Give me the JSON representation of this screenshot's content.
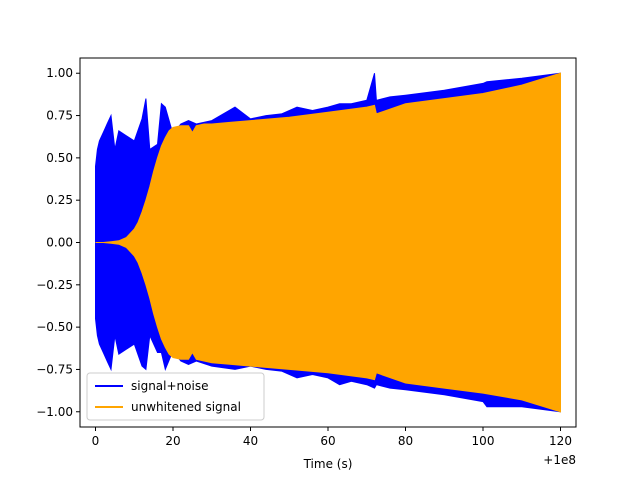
{
  "chart_data": {
    "type": "line",
    "title": "",
    "xlabel": "Time (s)",
    "ylabel": "",
    "x_offset_label": "+1e8",
    "xlim": [
      -4,
      124
    ],
    "ylim": [
      -1.09,
      1.09
    ],
    "x_ticks": [
      0,
      20,
      40,
      60,
      80,
      100,
      120
    ],
    "x_tick_labels": [
      "0",
      "20",
      "40",
      "60",
      "80",
      "100",
      "120"
    ],
    "y_ticks": [
      -1.0,
      -0.75,
      -0.5,
      -0.25,
      0.0,
      0.25,
      0.5,
      0.75,
      1.0
    ],
    "y_tick_labels": [
      "−1.00",
      "−0.75",
      "−0.50",
      "−0.25",
      "0.00",
      "0.25",
      "0.50",
      "0.75",
      "1.00"
    ],
    "grid": false,
    "legend_position": "lower-left",
    "series": [
      {
        "name": "signal+noise",
        "color": "#0000ff",
        "x": [
          0,
          0.5,
          1,
          2,
          3,
          4,
          5,
          6,
          8,
          10,
          12,
          13,
          14,
          16,
          17,
          18,
          20,
          22,
          24,
          26,
          30,
          36,
          40,
          44,
          48,
          52,
          56,
          60,
          63,
          66,
          70,
          72,
          72.5,
          76,
          80,
          90,
          100,
          101,
          110,
          120
        ],
        "upper": [
          0.45,
          0.55,
          0.6,
          0.65,
          0.7,
          0.75,
          0.55,
          0.66,
          0.63,
          0.6,
          0.73,
          0.85,
          0.55,
          0.58,
          0.82,
          0.8,
          0.64,
          0.7,
          0.72,
          0.7,
          0.72,
          0.8,
          0.73,
          0.75,
          0.76,
          0.8,
          0.78,
          0.8,
          0.82,
          0.82,
          0.84,
          1.0,
          0.84,
          0.86,
          0.87,
          0.9,
          0.94,
          0.95,
          0.97,
          1.0
        ],
        "lower": [
          -0.45,
          -0.55,
          -0.6,
          -0.65,
          -0.7,
          -0.75,
          -0.55,
          -0.66,
          -0.63,
          -0.6,
          -0.73,
          -0.75,
          -0.55,
          -0.65,
          -0.65,
          -0.75,
          -0.64,
          -0.7,
          -0.72,
          -0.7,
          -0.73,
          -0.75,
          -0.73,
          -0.75,
          -0.76,
          -0.8,
          -0.78,
          -0.8,
          -0.84,
          -0.82,
          -0.84,
          -0.86,
          -0.84,
          -0.86,
          -0.87,
          -0.9,
          -0.94,
          -0.97,
          -0.97,
          -1.0
        ]
      },
      {
        "name": "unwhitened signal",
        "color": "#ffa500",
        "x": [
          0,
          2,
          4,
          6,
          8,
          10,
          11,
          12,
          13,
          14,
          15,
          16,
          17,
          18,
          19,
          20,
          22,
          24,
          25,
          26,
          28,
          30,
          35,
          40,
          50,
          60,
          70,
          72,
          72.5,
          80,
          90,
          100,
          110,
          120
        ],
        "upper": [
          0.0,
          0.0,
          0.005,
          0.01,
          0.03,
          0.08,
          0.12,
          0.18,
          0.25,
          0.33,
          0.42,
          0.5,
          0.57,
          0.62,
          0.66,
          0.68,
          0.69,
          0.69,
          0.65,
          0.69,
          0.7,
          0.7,
          0.71,
          0.72,
          0.74,
          0.77,
          0.8,
          0.81,
          0.76,
          0.82,
          0.85,
          0.88,
          0.93,
          1.0
        ],
        "lower": [
          0.0,
          0.0,
          -0.005,
          -0.01,
          -0.03,
          -0.08,
          -0.12,
          -0.18,
          -0.25,
          -0.33,
          -0.42,
          -0.5,
          -0.57,
          -0.62,
          -0.66,
          -0.68,
          -0.69,
          -0.69,
          -0.65,
          -0.69,
          -0.7,
          -0.71,
          -0.72,
          -0.73,
          -0.75,
          -0.77,
          -0.8,
          -0.81,
          -0.77,
          -0.83,
          -0.86,
          -0.89,
          -0.93,
          -1.0
        ]
      }
    ]
  }
}
